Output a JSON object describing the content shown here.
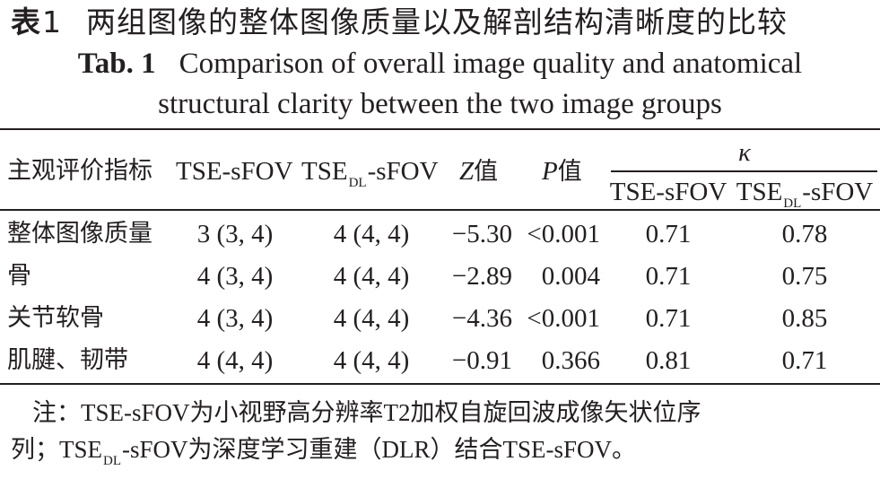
{
  "title_cn": {
    "label": "表",
    "number": "1",
    "text": "两组图像的整体图像质量以及解剖结构清晰度的比较"
  },
  "title_en": {
    "label": "Tab. 1",
    "line1": "Comparison of overall image quality and anatomical",
    "line2": "structural clarity between the two image groups"
  },
  "headers": {
    "indicator": "主观评价指标",
    "tse1_pre": "TSE-sFOV",
    "tse2_pre": "TSE",
    "tse2_sub": "DL",
    "tse2_post": "-sFOV",
    "z_sym": "Z",
    "z_suffix": "值",
    "p_sym": "P",
    "p_suffix": "值",
    "kappa": "κ",
    "kappa_col1": "TSE-sFOV",
    "kappa_col2_pre": "TSE",
    "kappa_col2_sub": "DL",
    "kappa_col2_post": "-sFOV"
  },
  "rows": [
    {
      "name": "整体图像质量",
      "tse": "3 (3, 4)",
      "tsedl": "4 (4, 4)",
      "z": "−5.30",
      "p": "<0.001",
      "k1": "0.71",
      "k2": "0.78"
    },
    {
      "name": "骨",
      "tse": "4 (3, 4)",
      "tsedl": "4 (4, 4)",
      "z": "−2.89",
      "p": "0.004",
      "k1": "0.71",
      "k2": "0.75"
    },
    {
      "name": "关节软骨",
      "tse": "4 (3, 4)",
      "tsedl": "4 (4, 4)",
      "z": "−4.36",
      "p": "<0.001",
      "k1": "0.71",
      "k2": "0.85"
    },
    {
      "name": "肌腱、韧带",
      "tse": "4 (4, 4)",
      "tsedl": "4 (4, 4)",
      "z": "−0.91",
      "p": "0.366",
      "k1": "0.81",
      "k2": "0.71"
    }
  ],
  "note": {
    "line1": "注：TSE-sFOV为小视野高分辨率T2加权自旋回波成像矢状位序",
    "line2_pre": "列；TSE",
    "line2_sub": "DL",
    "line2_post": "-sFOV为深度学习重建（DLR）结合TSE-sFOV。"
  }
}
